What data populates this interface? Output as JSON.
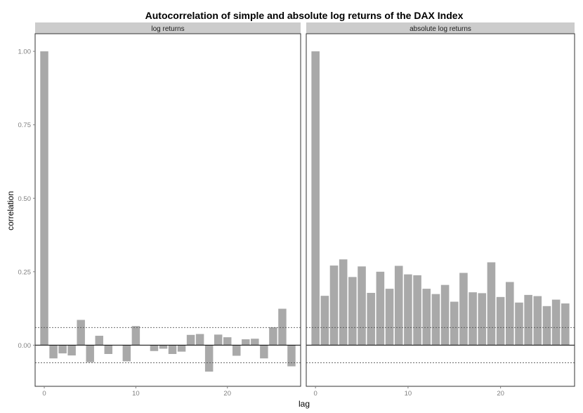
{
  "chart_data": {
    "type": "bar",
    "title": "Autocorrelation of simple and absolute log returns of the DAX Index",
    "xlabel": "lag",
    "ylabel": "correlation",
    "xlim": [
      -1,
      28
    ],
    "ylim": [
      -0.14,
      1.06
    ],
    "x_ticks": [
      0,
      10,
      20
    ],
    "x_tick_labels": [
      "0",
      "10",
      "20"
    ],
    "y_ticks": [
      0,
      0.25,
      0.5,
      0.75,
      1.0
    ],
    "y_tick_labels": [
      "0.00",
      "0.25",
      "0.50",
      "0.75",
      "1.00"
    ],
    "confidence_bounds": [
      0.06,
      -0.06
    ],
    "bar_color": "#a9a9a9",
    "strip_color": "#cccccc",
    "grid": false,
    "panels": [
      {
        "label": "log returns",
        "lags": [
          0,
          1,
          2,
          3,
          4,
          5,
          6,
          7,
          8,
          9,
          10,
          11,
          12,
          13,
          14,
          15,
          16,
          17,
          18,
          19,
          20,
          21,
          22,
          23,
          24,
          25,
          26,
          27
        ],
        "values": [
          1.0,
          -0.045,
          -0.028,
          -0.035,
          0.086,
          -0.058,
          0.032,
          -0.03,
          0.0,
          -0.055,
          0.065,
          0.0,
          -0.02,
          -0.012,
          -0.03,
          -0.022,
          0.035,
          0.038,
          -0.09,
          0.036,
          0.027,
          -0.036,
          0.02,
          0.022,
          -0.045,
          0.061,
          0.124,
          -0.072
        ]
      },
      {
        "label": "absolute log returns",
        "lags": [
          0,
          1,
          2,
          3,
          4,
          5,
          6,
          7,
          8,
          9,
          10,
          11,
          12,
          13,
          14,
          15,
          16,
          17,
          18,
          19,
          20,
          21,
          22,
          23,
          24,
          25,
          26,
          27
        ],
        "values": [
          1.0,
          0.168,
          0.271,
          0.292,
          0.232,
          0.268,
          0.178,
          0.25,
          0.192,
          0.27,
          0.241,
          0.238,
          0.192,
          0.174,
          0.205,
          0.148,
          0.246,
          0.18,
          0.177,
          0.282,
          0.164,
          0.215,
          0.145,
          0.171,
          0.167,
          0.133,
          0.155,
          0.142
        ]
      }
    ]
  }
}
